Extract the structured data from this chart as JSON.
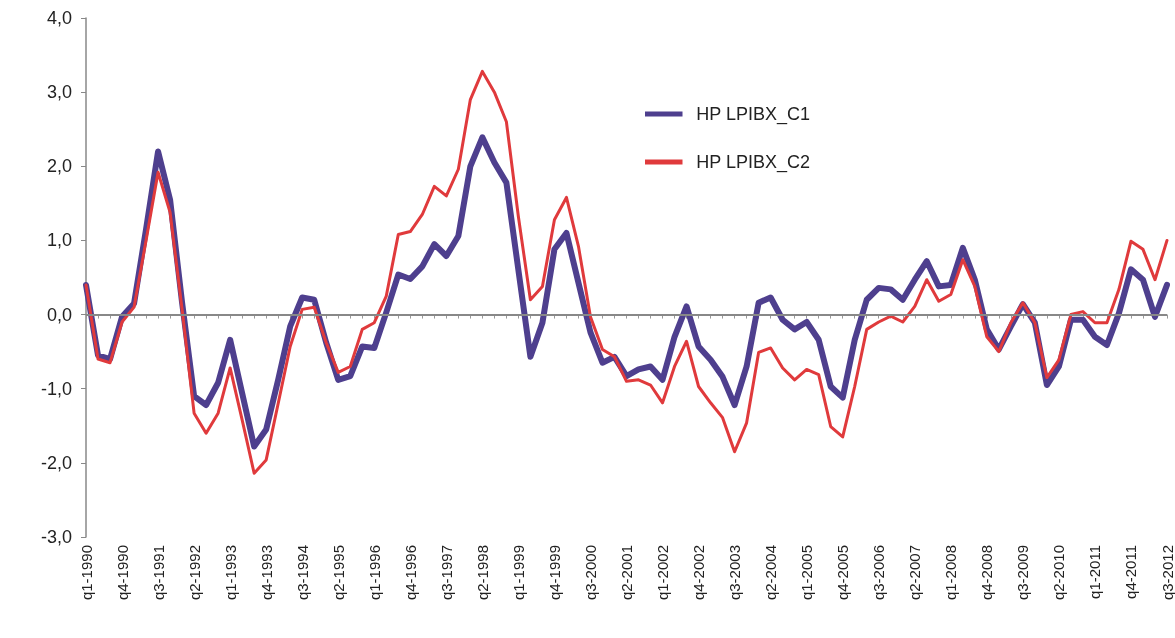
{
  "chart_data": {
    "type": "line",
    "categories": [
      "q1-1990",
      null,
      null,
      "q4-1990",
      null,
      null,
      "q3-1991",
      null,
      null,
      "q2-1992",
      null,
      null,
      "q1-1993",
      null,
      null,
      "q4-1993",
      null,
      null,
      "q3-1994",
      null,
      null,
      "q2-1995",
      null,
      null,
      "q1-1996",
      null,
      null,
      "q4-1996",
      null,
      null,
      "q3-1997",
      null,
      null,
      "q2-1998",
      null,
      null,
      "q1-1999",
      null,
      null,
      "q4-1999",
      null,
      null,
      "q3-2000",
      null,
      null,
      "q2-2001",
      null,
      null,
      "q1-2002",
      null,
      null,
      "q4-2002",
      null,
      null,
      "q3-2003",
      null,
      null,
      "q2-2004",
      null,
      null,
      "q1-2005",
      null,
      null,
      "q4-2005",
      null,
      null,
      "q3-2006",
      null,
      null,
      "q2-2007",
      null,
      null,
      "q1-2008",
      null,
      null,
      "q4-2008",
      null,
      null,
      "q3-2009",
      null,
      null,
      "q2-2010",
      null,
      null,
      "q1-2011",
      null,
      null,
      "q4-2011",
      null,
      null,
      "q3-2012"
    ],
    "series": [
      {
        "name": "HP LPIBX_C1",
        "color": "#4e3f8e",
        "values": [
          0.4,
          -0.55,
          -0.6,
          -0.03,
          0.15,
          1.15,
          2.2,
          1.55,
          0.16,
          -1.1,
          -1.22,
          -0.92,
          -0.34,
          -1.06,
          -1.78,
          -1.55,
          -0.88,
          -0.16,
          0.23,
          0.2,
          -0.38,
          -0.88,
          -0.83,
          -0.43,
          -0.45,
          0.03,
          0.54,
          0.48,
          0.65,
          0.95,
          0.79,
          1.06,
          2.0,
          2.39,
          2.05,
          1.78,
          0.6,
          -0.57,
          -0.11,
          0.88,
          1.1,
          0.43,
          -0.24,
          -0.65,
          -0.57,
          -0.83,
          -0.74,
          -0.7,
          -0.88,
          -0.3,
          0.11,
          -0.43,
          -0.61,
          -0.84,
          -1.22,
          -0.7,
          0.16,
          0.23,
          -0.07,
          -0.2,
          -0.1,
          -0.34,
          -0.97,
          -1.12,
          -0.34,
          0.2,
          0.36,
          0.34,
          0.2,
          0.47,
          0.72,
          0.38,
          0.4,
          0.9,
          0.47,
          -0.2,
          -0.47,
          -0.16,
          0.14,
          -0.11,
          -0.95,
          -0.7,
          -0.07,
          -0.07,
          -0.3,
          -0.41,
          0.02,
          0.61,
          0.47,
          -0.03,
          0.4
        ]
      },
      {
        "name": "HP LPIBX_C2",
        "color": "#e03a3c",
        "values": [
          0.4,
          -0.6,
          -0.65,
          -0.1,
          0.1,
          1.0,
          1.92,
          1.38,
          0.07,
          -1.33,
          -1.6,
          -1.33,
          -0.72,
          -1.42,
          -2.14,
          -1.96,
          -1.2,
          -0.43,
          0.07,
          0.1,
          -0.38,
          -0.78,
          -0.7,
          -0.2,
          -0.11,
          0.25,
          1.08,
          1.12,
          1.35,
          1.73,
          1.6,
          1.96,
          2.9,
          3.28,
          3.0,
          2.6,
          1.32,
          0.2,
          0.38,
          1.28,
          1.58,
          0.92,
          -0.03,
          -0.47,
          -0.57,
          -0.9,
          -0.88,
          -0.95,
          -1.19,
          -0.7,
          -0.36,
          -0.97,
          -1.19,
          -1.39,
          -1.85,
          -1.46,
          -0.51,
          -0.45,
          -0.72,
          -0.88,
          -0.74,
          -0.81,
          -1.51,
          -1.65,
          -0.97,
          -0.2,
          -0.1,
          -0.02,
          -0.1,
          0.11,
          0.47,
          0.18,
          0.27,
          0.74,
          0.38,
          -0.3,
          -0.5,
          -0.11,
          0.16,
          -0.11,
          -0.85,
          -0.61,
          0.0,
          0.04,
          -0.11,
          -0.11,
          0.34,
          0.99,
          0.88,
          0.47,
          1.0
        ]
      }
    ],
    "ylim": [
      -3.0,
      4.0
    ],
    "yticks": [
      {
        "value": -3,
        "label": "-3,0"
      },
      {
        "value": -2,
        "label": "-2,0"
      },
      {
        "value": -1,
        "label": "-1,0"
      },
      {
        "value": 0,
        "label": "0,0"
      },
      {
        "value": 1,
        "label": "1,0"
      },
      {
        "value": 2,
        "label": "2,0"
      },
      {
        "value": 3,
        "label": "3,0"
      },
      {
        "value": 4,
        "label": "4,0"
      }
    ],
    "ref_lines": [
      {
        "axis": "y",
        "value": 0,
        "color": "#888888"
      }
    ],
    "grid": false,
    "legend": "top right",
    "marker": "none",
    "line_style": "solid"
  }
}
